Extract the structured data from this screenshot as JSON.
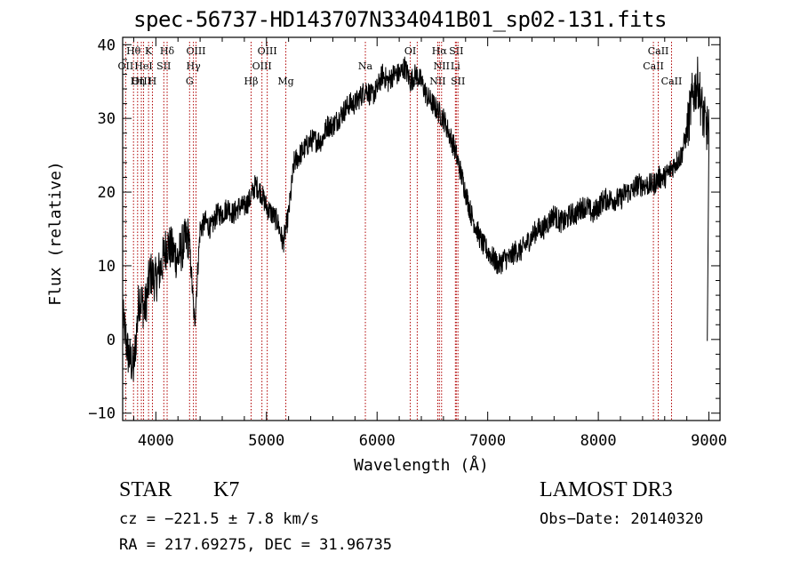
{
  "chart_data": {
    "type": "line",
    "title": "spec-56737-HD143707N334041B01_sp02-131.fits",
    "xlabel": "Wavelength (Å)",
    "ylabel": "Flux (relative)",
    "xlim": [
      3700,
      9100
    ],
    "ylim": [
      -11,
      41
    ],
    "xticks": [
      4000,
      5000,
      6000,
      7000,
      8000,
      9000
    ],
    "yticks": [
      -10,
      0,
      10,
      20,
      30,
      40
    ],
    "grid": false,
    "series": [
      {
        "name": "flux",
        "x": [
          3700,
          3750,
          3800,
          3850,
          3900,
          3950,
          4000,
          4050,
          4100,
          4150,
          4200,
          4250,
          4300,
          4350,
          4400,
          4450,
          4500,
          4550,
          4600,
          4650,
          4700,
          4750,
          4800,
          4850,
          4900,
          4950,
          5000,
          5050,
          5100,
          5150,
          5200,
          5250,
          5300,
          5350,
          5400,
          5450,
          5500,
          5550,
          5600,
          5650,
          5700,
          5750,
          5800,
          5850,
          5900,
          5950,
          6000,
          6050,
          6100,
          6150,
          6200,
          6250,
          6300,
          6350,
          6400,
          6450,
          6500,
          6550,
          6600,
          6650,
          6700,
          6750,
          6800,
          6850,
          6900,
          6950,
          7000,
          7050,
          7100,
          7150,
          7200,
          7250,
          7300,
          7350,
          7400,
          7450,
          7500,
          7550,
          7600,
          7650,
          7700,
          7750,
          7800,
          7850,
          7900,
          7950,
          8000,
          8050,
          8100,
          8150,
          8200,
          8250,
          8300,
          8350,
          8400,
          8450,
          8500,
          8550,
          8600,
          8650,
          8700,
          8750,
          8800,
          8850,
          8900,
          8950,
          9000
        ],
        "y": [
          3,
          -2,
          -4,
          6,
          4,
          9,
          8,
          10,
          13,
          12,
          11,
          13,
          14,
          2,
          15,
          16,
          15,
          17,
          17,
          18,
          17,
          18,
          18,
          19,
          21,
          20,
          18,
          17,
          16,
          13,
          17,
          24,
          25,
          26,
          27,
          27,
          27,
          29,
          29,
          30,
          31,
          32,
          32,
          33,
          34,
          33,
          34,
          36,
          35,
          36,
          36,
          37,
          35,
          36,
          35,
          33,
          32,
          31,
          30,
          28,
          26,
          23,
          20,
          17,
          15,
          13,
          12,
          11,
          10,
          11,
          11,
          12,
          12,
          13,
          14,
          15,
          15,
          16,
          17,
          16,
          16,
          17,
          17,
          18,
          18,
          17,
          18,
          19,
          19,
          19,
          19,
          20,
          20,
          21,
          21,
          21,
          21,
          22,
          22,
          23,
          24,
          25,
          28,
          33,
          35,
          30,
          28
        ]
      }
    ],
    "lines": [
      {
        "label": "Hθ",
        "wave": 3798,
        "row": 1
      },
      {
        "label": "OII",
        "wave": 3727,
        "row": 2
      },
      {
        "label": "OIII",
        "wave": 3869,
        "row": 3
      },
      {
        "label": "K",
        "wave": 3934,
        "row": 1
      },
      {
        "label": "HeI",
        "wave": 3889,
        "row": 2
      },
      {
        "label": "Hη",
        "wave": 3835,
        "row": 3
      },
      {
        "label": "H",
        "wave": 3969,
        "row": 3
      },
      {
        "label": "Hδ",
        "wave": 4102,
        "row": 1
      },
      {
        "label": "SII",
        "wave": 4072,
        "row": 2
      },
      {
        "label": "OIII",
        "wave": 4363,
        "row": 1
      },
      {
        "label": "Hγ",
        "wave": 4340,
        "row": 2
      },
      {
        "label": "G",
        "wave": 4305,
        "row": 3
      },
      {
        "label": "Hβ",
        "wave": 4861,
        "row": 3
      },
      {
        "label": "OIII",
        "wave": 4959,
        "row": 2
      },
      {
        "label": "OIII",
        "wave": 5007,
        "row": 1
      },
      {
        "label": "Mg",
        "wave": 5175,
        "row": 3
      },
      {
        "label": "Na",
        "wave": 5894,
        "row": 2
      },
      {
        "label": "OI",
        "wave": 6300,
        "row": 1
      },
      {
        "label": "OI",
        "wave": 6363,
        "row": 3
      },
      {
        "label": "NII",
        "wave": 6548,
        "row": 3
      },
      {
        "label": "NII",
        "wave": 6583,
        "row": 2
      },
      {
        "label": "Hα",
        "wave": 6563,
        "row": 1
      },
      {
        "label": "SII",
        "wave": 6716,
        "row": 1
      },
      {
        "label": "Li",
        "wave": 6708,
        "row": 2
      },
      {
        "label": "SII",
        "wave": 6731,
        "row": 3
      },
      {
        "label": "CaII",
        "wave": 8498,
        "row": 2
      },
      {
        "label": "CaII",
        "wave": 8542,
        "row": 1
      },
      {
        "label": "CaII",
        "wave": 8662,
        "row": 3
      }
    ]
  },
  "info": {
    "object_class": "STAR",
    "subclass": "K7",
    "survey": "LAMOST DR3",
    "cz": "cz = −221.5 ± 7.8 km/s",
    "obs_date": "Obs−Date: 20140320",
    "coords": "RA = 217.69275, DEC =  31.96735"
  }
}
